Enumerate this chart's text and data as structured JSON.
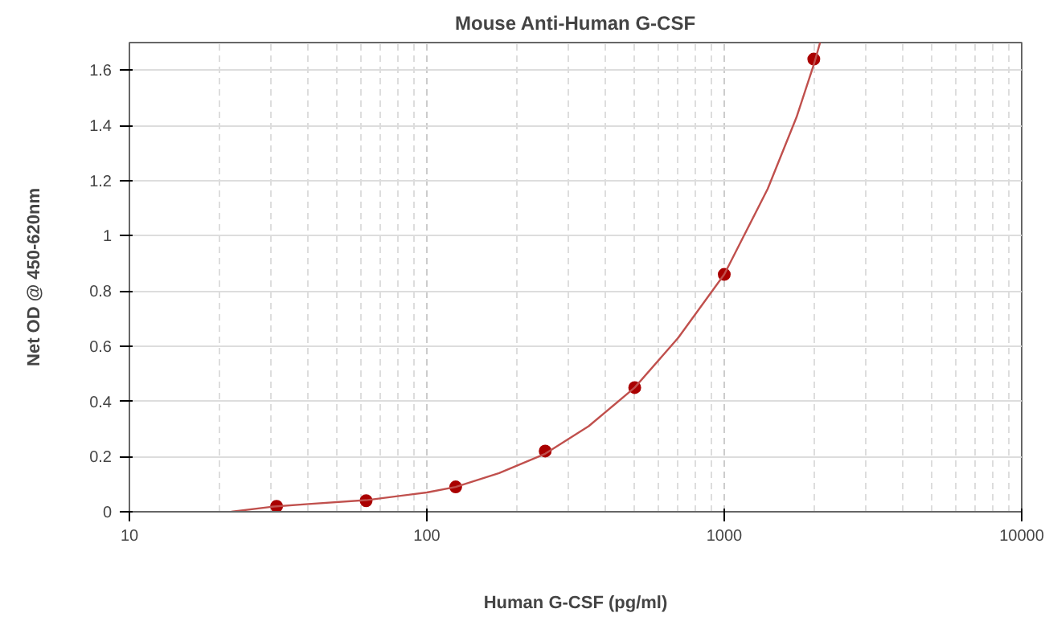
{
  "chart_data": {
    "type": "scatter",
    "title": "Mouse Anti-Human G-CSF",
    "xlabel": "Human G-CSF (pg/ml)",
    "ylabel": "Net OD @ 450-620nm",
    "log": "x",
    "grid": true,
    "marker": "circle",
    "xlim": [
      10,
      10000
    ],
    "xticks": [
      10,
      100,
      1000,
      10000
    ],
    "ylim": [
      0,
      1.7
    ],
    "yticks": [
      0,
      0.2,
      0.4,
      0.6,
      0.8,
      1,
      1.2,
      1.4,
      1.6
    ],
    "series": [
      {
        "color": "#aa0000",
        "x": [
          31.25,
          62.5,
          125,
          250,
          500,
          1000,
          2000
        ],
        "values": [
          0.02,
          0.04,
          0.09,
          0.22,
          0.45,
          0.86,
          1.64
        ]
      },
      {
        "type": "line",
        "marker": "none",
        "color": "#c0504d",
        "x": [
          22,
          30,
          40,
          62.5,
          100,
          125,
          175,
          250,
          350,
          500,
          700,
          1000,
          1400,
          1750,
          2000,
          2100
        ],
        "values": [
          0.0,
          0.018,
          0.028,
          0.042,
          0.07,
          0.09,
          0.14,
          0.21,
          0.31,
          0.45,
          0.63,
          0.86,
          1.17,
          1.43,
          1.62,
          1.7
        ]
      }
    ]
  }
}
